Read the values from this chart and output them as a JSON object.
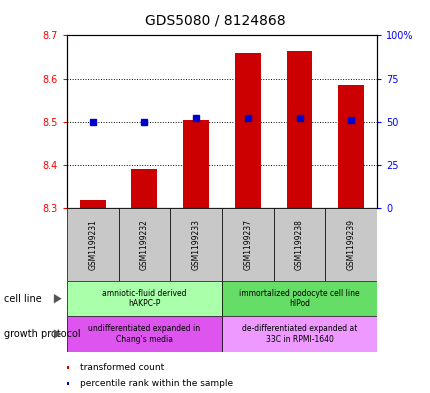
{
  "title": "GDS5080 / 8124868",
  "samples": [
    "GSM1199231",
    "GSM1199232",
    "GSM1199233",
    "GSM1199237",
    "GSM1199238",
    "GSM1199239"
  ],
  "transformed_count": [
    8.32,
    8.39,
    8.505,
    8.66,
    8.665,
    8.585
  ],
  "percentile_rank": [
    50,
    50,
    52,
    52,
    52,
    51
  ],
  "ylim_left": [
    8.3,
    8.7
  ],
  "ylim_right": [
    0,
    100
  ],
  "yticks_left": [
    8.3,
    8.4,
    8.5,
    8.6,
    8.7
  ],
  "yticks_right": [
    0,
    25,
    50,
    75,
    100
  ],
  "bar_color": "#cc0000",
  "dot_color": "#0000cc",
  "bar_bottom": 8.3,
  "cell_line_groups": [
    {
      "label": "amniotic-fluid derived\nhAKPC-P",
      "start": 0,
      "end": 3,
      "color": "#aaffaa"
    },
    {
      "label": "immortalized podocyte cell line\nhIPod",
      "start": 3,
      "end": 6,
      "color": "#66dd66"
    }
  ],
  "growth_protocol_groups": [
    {
      "label": "undifferentiated expanded in\nChang's media",
      "start": 0,
      "end": 3,
      "color": "#dd55ee"
    },
    {
      "label": "de-differentiated expanded at\n33C in RPMI-1640",
      "start": 3,
      "end": 6,
      "color": "#ee99ff"
    }
  ],
  "cell_line_label": "cell line",
  "growth_protocol_label": "growth protocol",
  "legend_bar_label": "transformed count",
  "legend_dot_label": "percentile rank within the sample",
  "title_fontsize": 10,
  "tick_fontsize": 7,
  "label_fontsize": 7,
  "sample_label_fontsize": 5.5,
  "group_label_fontsize": 5.5,
  "legend_fontsize": 6.5,
  "sample_box_color": "#c8c8c8"
}
